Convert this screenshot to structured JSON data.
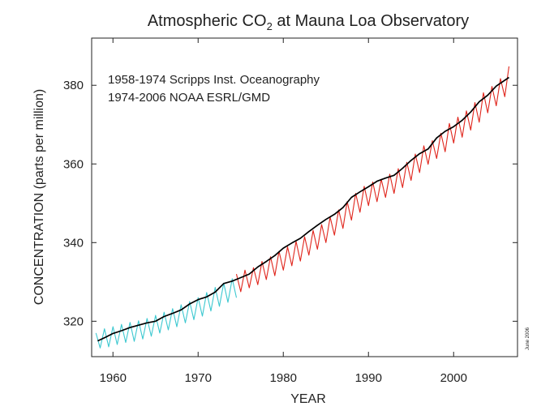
{
  "chart_data": {
    "type": "line",
    "title": {
      "prefix": "Atmospheric CO",
      "subscript": "2",
      "suffix": " at Mauna Loa Observatory"
    },
    "xlabel": "YEAR",
    "ylabel": "CONCENTRATION (parts per million)",
    "xlim": [
      1957.5,
      2007.5
    ],
    "ylim": [
      311,
      392
    ],
    "xticks": [
      1960,
      1970,
      1980,
      1990,
      2000
    ],
    "xtick_labels": [
      "1960",
      "1970",
      "1980",
      "1990",
      "2000"
    ],
    "yticks": [
      320,
      340,
      360,
      380
    ],
    "ytick_labels": [
      "320",
      "340",
      "360",
      "380"
    ],
    "legend": {
      "placement": "top-left",
      "lines": [
        "1958-1974 Scripps Inst. Oceanography",
        "1974-2006 NOAA ESRL/GMD"
      ]
    },
    "annotation": "June 2006",
    "colors": {
      "scripps": "#3cc8d0",
      "noaa": "#e0251c",
      "trend": "#000000",
      "axes": "#222222"
    },
    "series": [
      {
        "key": "scripps",
        "x_start": 1958,
        "x_step": 0.5,
        "values": [
          317.0,
          313.2,
          318.1,
          313.5,
          318.6,
          314.1,
          319.2,
          314.6,
          319.7,
          314.9,
          320.1,
          315.5,
          320.7,
          316.2,
          321.5,
          317.0,
          322.3,
          317.8,
          323.2,
          318.6,
          324.2,
          319.6,
          325.0,
          320.4,
          326.0,
          321.3,
          327.3,
          322.6,
          328.6,
          323.8,
          329.7,
          324.8,
          330.8,
          326.0
        ]
      },
      {
        "key": "noaa",
        "x_start": 1974.5,
        "x_step": 0.5,
        "values": [
          332.0,
          327.5,
          333.0,
          328.5,
          333.6,
          329.3,
          335.2,
          330.6,
          336.4,
          331.6,
          337.8,
          333.0,
          338.9,
          334.1,
          340.3,
          335.3,
          341.5,
          336.8,
          343.1,
          338.3,
          344.6,
          340.0,
          346.5,
          341.9,
          348.3,
          343.6,
          350.4,
          345.7,
          352.5,
          347.7,
          354.3,
          349.4,
          355.4,
          350.4,
          356.1,
          351.5,
          357.4,
          352.5,
          358.8,
          354.0,
          360.4,
          355.8,
          362.5,
          357.8,
          364.6,
          359.9,
          365.9,
          361.4,
          367.8,
          363.1,
          370.3,
          365.3,
          371.9,
          366.8,
          373.5,
          368.6,
          375.6,
          370.6,
          378.1,
          373.0,
          379.7,
          374.8,
          381.7,
          377.1,
          384.8
        ]
      },
      {
        "key": "trend",
        "x": [
          1958.2,
          1959,
          1960,
          1961,
          1962,
          1963,
          1964,
          1965,
          1966,
          1967,
          1968,
          1969,
          1970,
          1971,
          1972,
          1973,
          1974,
          1975,
          1976,
          1977,
          1978,
          1979,
          1980,
          1981,
          1982,
          1983,
          1984,
          1985,
          1986,
          1987,
          1988,
          1989,
          1990,
          1991,
          1992,
          1993,
          1994,
          1995,
          1996,
          1997,
          1998,
          1999,
          2000,
          2001,
          2002,
          2003,
          2004,
          2005,
          2006.5
        ],
        "values": [
          315.0,
          315.8,
          316.9,
          317.6,
          318.4,
          319.0,
          319.6,
          320.0,
          321.2,
          322.0,
          322.9,
          324.4,
          325.5,
          326.2,
          327.4,
          329.6,
          330.2,
          331.1,
          332.0,
          333.8,
          335.2,
          336.7,
          338.6,
          339.9,
          341.1,
          342.8,
          344.4,
          345.9,
          347.2,
          348.9,
          351.5,
          352.9,
          354.2,
          355.6,
          356.4,
          357.1,
          358.9,
          360.9,
          362.6,
          363.8,
          366.6,
          368.3,
          369.5,
          371.1,
          373.2,
          375.8,
          377.5,
          379.8,
          382.0
        ]
      }
    ]
  }
}
